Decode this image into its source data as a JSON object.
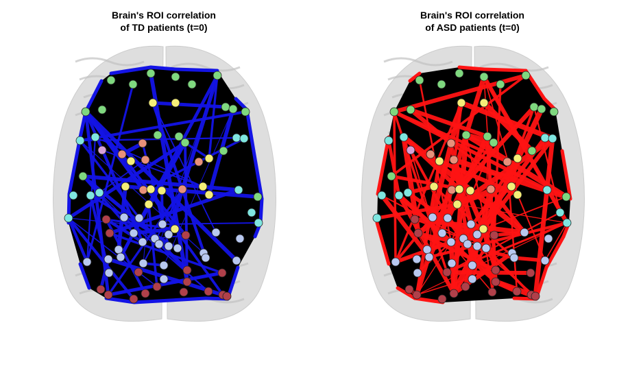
{
  "panels": [
    {
      "title_line1": "Brain's ROI correlation",
      "title_line2": "of TD patients (t=0)",
      "edge_color": "#1414e6"
    },
    {
      "title_line1": "Brain's ROI correlation",
      "title_line2": "of ASD patients (t=0)",
      "edge_color": "#ff1414"
    }
  ],
  "colors": {
    "network_fill": "#000000",
    "brain_fill": "#d9d9d9",
    "node_green": "#7fd87f",
    "node_cyan": "#7fe6e0",
    "node_yellow": "#f5ee78",
    "node_salmon": "#e8907a",
    "node_lavender": "#b8c8f0",
    "node_maroon": "#b0404a",
    "node_pink": "#d8a0d8"
  }
}
